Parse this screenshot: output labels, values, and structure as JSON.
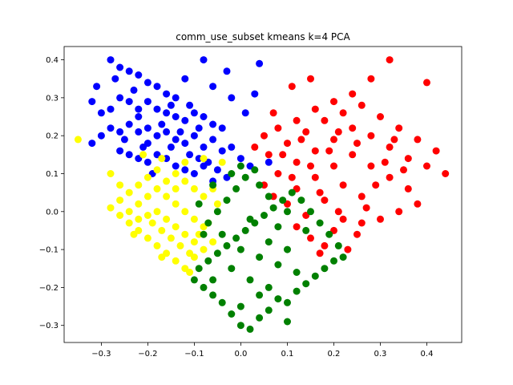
{
  "chart_data": {
    "type": "scatter",
    "title": "comm_use_subset kmeans k=4 PCA",
    "xlabel": "",
    "ylabel": "",
    "xlim": [
      -0.38,
      0.475
    ],
    "ylim": [
      -0.345,
      0.435
    ],
    "xticks": [
      -0.3,
      -0.2,
      -0.1,
      0.0,
      0.1,
      0.2,
      0.3,
      0.4
    ],
    "xtick_labels": [
      "−0.3",
      "−0.2",
      "−0.1",
      "0.0",
      "0.1",
      "0.2",
      "0.3",
      "0.4"
    ],
    "yticks": [
      -0.3,
      -0.2,
      -0.1,
      0.0,
      0.1,
      0.2,
      0.3,
      0.4
    ],
    "ytick_labels": [
      "−0.3",
      "−0.2",
      "−0.1",
      "0.0",
      "0.1",
      "0.2",
      "0.3",
      "0.4"
    ],
    "grid": false,
    "legend": "none",
    "series": [
      {
        "color": "#0000ff",
        "points": [
          [
            -0.28,
            0.4
          ],
          [
            -0.26,
            0.38
          ],
          [
            -0.24,
            0.37
          ],
          [
            -0.22,
            0.36
          ],
          [
            -0.2,
            0.34
          ],
          [
            -0.18,
            0.33
          ],
          [
            -0.16,
            0.31
          ],
          [
            -0.14,
            0.3
          ],
          [
            -0.12,
            0.35
          ],
          [
            -0.08,
            0.4
          ],
          [
            -0.06,
            0.33
          ],
          [
            -0.03,
            0.37
          ],
          [
            0.04,
            0.39
          ],
          [
            -0.31,
            0.33
          ],
          [
            -0.32,
            0.29
          ],
          [
            -0.3,
            0.26
          ],
          [
            -0.28,
            0.27
          ],
          [
            -0.26,
            0.3
          ],
          [
            -0.24,
            0.29
          ],
          [
            -0.22,
            0.27
          ],
          [
            -0.2,
            0.29
          ],
          [
            -0.18,
            0.27
          ],
          [
            -0.16,
            0.26
          ],
          [
            -0.14,
            0.25
          ],
          [
            -0.12,
            0.24
          ],
          [
            -0.1,
            0.26
          ],
          [
            -0.08,
            0.25
          ],
          [
            -0.06,
            0.23
          ],
          [
            -0.04,
            0.22
          ],
          [
            -0.02,
            0.3
          ],
          [
            0.01,
            0.26
          ],
          [
            -0.28,
            0.22
          ],
          [
            -0.3,
            0.2
          ],
          [
            -0.32,
            0.18
          ],
          [
            -0.26,
            0.21
          ],
          [
            -0.24,
            0.23
          ],
          [
            -0.22,
            0.21
          ],
          [
            -0.2,
            0.22
          ],
          [
            -0.18,
            0.2
          ],
          [
            -0.16,
            0.21
          ],
          [
            -0.14,
            0.19
          ],
          [
            -0.12,
            0.18
          ],
          [
            -0.1,
            0.2
          ],
          [
            -0.08,
            0.17
          ],
          [
            -0.06,
            0.19
          ],
          [
            -0.04,
            0.16
          ],
          [
            -0.02,
            0.17
          ],
          [
            0.0,
            0.14
          ],
          [
            0.02,
            0.12
          ],
          [
            -0.26,
            0.16
          ],
          [
            -0.24,
            0.15
          ],
          [
            -0.22,
            0.14
          ],
          [
            -0.2,
            0.13
          ],
          [
            -0.18,
            0.15
          ],
          [
            -0.16,
            0.14
          ],
          [
            -0.14,
            0.12
          ],
          [
            -0.12,
            0.11
          ],
          [
            -0.1,
            0.1
          ],
          [
            -0.08,
            0.12
          ],
          [
            -0.06,
            0.08
          ],
          [
            -0.05,
            0.11
          ],
          [
            -0.03,
            0.09
          ],
          [
            -0.2,
            0.18
          ],
          [
            -0.22,
            0.25
          ],
          [
            -0.25,
            0.19
          ],
          [
            -0.17,
            0.23
          ],
          [
            -0.15,
            0.17
          ],
          [
            -0.13,
            0.21
          ],
          [
            -0.11,
            0.15
          ],
          [
            -0.09,
            0.14
          ],
          [
            -0.07,
            0.13
          ],
          [
            -0.19,
            0.1
          ],
          [
            -0.21,
            0.17
          ],
          [
            -0.23,
            0.32
          ],
          [
            -0.27,
            0.35
          ],
          [
            -0.15,
            0.28
          ],
          [
            -0.11,
            0.28
          ],
          [
            -0.09,
            0.22
          ],
          [
            0.03,
            0.31
          ],
          [
            0.06,
            0.13
          ]
        ]
      },
      {
        "color": "#ff0000",
        "points": [
          [
            0.32,
            0.4
          ],
          [
            0.28,
            0.35
          ],
          [
            0.4,
            0.34
          ],
          [
            0.24,
            0.31
          ],
          [
            0.2,
            0.29
          ],
          [
            0.16,
            0.27
          ],
          [
            0.12,
            0.24
          ],
          [
            0.08,
            0.22
          ],
          [
            0.05,
            0.2
          ],
          [
            0.03,
            0.17
          ],
          [
            0.06,
            0.15
          ],
          [
            0.1,
            0.18
          ],
          [
            0.14,
            0.21
          ],
          [
            0.18,
            0.24
          ],
          [
            0.22,
            0.26
          ],
          [
            0.26,
            0.28
          ],
          [
            0.3,
            0.25
          ],
          [
            0.34,
            0.22
          ],
          [
            0.38,
            0.19
          ],
          [
            0.42,
            0.16
          ],
          [
            0.44,
            0.1
          ],
          [
            0.4,
            0.12
          ],
          [
            0.36,
            0.14
          ],
          [
            0.32,
            0.17
          ],
          [
            0.28,
            0.2
          ],
          [
            0.24,
            0.22
          ],
          [
            0.2,
            0.19
          ],
          [
            0.16,
            0.16
          ],
          [
            0.12,
            0.13
          ],
          [
            0.08,
            0.1
          ],
          [
            0.05,
            0.07
          ],
          [
            0.07,
            0.04
          ],
          [
            0.1,
            0.02
          ],
          [
            0.12,
            0.06
          ],
          [
            0.16,
            0.09
          ],
          [
            0.2,
            0.12
          ],
          [
            0.24,
            0.15
          ],
          [
            0.28,
            0.12
          ],
          [
            0.32,
            0.09
          ],
          [
            0.36,
            0.06
          ],
          [
            0.38,
            0.02
          ],
          [
            0.34,
            0.0
          ],
          [
            0.3,
            -0.02
          ],
          [
            0.26,
            0.04
          ],
          [
            0.22,
            0.07
          ],
          [
            0.18,
            0.03
          ],
          [
            0.14,
            -0.01
          ],
          [
            0.12,
            -0.04
          ],
          [
            0.15,
            -0.07
          ],
          [
            0.18,
            -0.09
          ],
          [
            0.2,
            -0.05
          ],
          [
            0.22,
            -0.02
          ],
          [
            0.25,
            -0.06
          ],
          [
            0.17,
            -0.11
          ],
          [
            0.23,
            -0.1
          ],
          [
            0.27,
            0.01
          ],
          [
            0.29,
            0.07
          ],
          [
            0.31,
            0.13
          ],
          [
            0.33,
            0.19
          ],
          [
            0.35,
            0.11
          ],
          [
            0.19,
            0.16
          ],
          [
            0.21,
            0.21
          ],
          [
            0.25,
            0.18
          ],
          [
            0.15,
            0.12
          ],
          [
            0.11,
            0.09
          ],
          [
            0.09,
            0.15
          ],
          [
            0.13,
            0.19
          ],
          [
            0.17,
            0.05
          ],
          [
            0.21,
            0.0
          ],
          [
            0.26,
            -0.03
          ],
          [
            0.11,
            0.33
          ],
          [
            0.15,
            0.35
          ],
          [
            0.07,
            0.26
          ]
        ]
      },
      {
        "color": "#ffff00",
        "points": [
          [
            -0.35,
            0.19
          ],
          [
            -0.21,
            0.15
          ],
          [
            -0.17,
            0.14
          ],
          [
            -0.04,
            0.13
          ],
          [
            -0.08,
            0.14
          ],
          [
            -0.12,
            0.13
          ],
          [
            -0.14,
            0.1
          ],
          [
            -0.16,
            0.08
          ],
          [
            -0.18,
            0.11
          ],
          [
            -0.2,
            0.09
          ],
          [
            -0.22,
            0.07
          ],
          [
            -0.24,
            0.05
          ],
          [
            -0.26,
            0.03
          ],
          [
            -0.28,
            0.01
          ],
          [
            -0.26,
            -0.01
          ],
          [
            -0.24,
            -0.03
          ],
          [
            -0.22,
            -0.05
          ],
          [
            -0.2,
            -0.07
          ],
          [
            -0.18,
            -0.09
          ],
          [
            -0.16,
            -0.11
          ],
          [
            -0.14,
            -0.13
          ],
          [
            -0.12,
            -0.15
          ],
          [
            -0.1,
            -0.12
          ],
          [
            -0.08,
            -0.1
          ],
          [
            -0.06,
            -0.08
          ],
          [
            -0.08,
            -0.04
          ],
          [
            -0.1,
            -0.02
          ],
          [
            -0.12,
            0.0
          ],
          [
            -0.14,
            0.02
          ],
          [
            -0.16,
            0.04
          ],
          [
            -0.18,
            0.06
          ],
          [
            -0.2,
            0.04
          ],
          [
            -0.22,
            0.02
          ],
          [
            -0.24,
            0.0
          ],
          [
            -0.22,
            -0.02
          ],
          [
            -0.2,
            -0.01
          ],
          [
            -0.18,
            0.0
          ],
          [
            -0.16,
            -0.02
          ],
          [
            -0.14,
            -0.04
          ],
          [
            -0.12,
            -0.06
          ],
          [
            -0.1,
            -0.08
          ],
          [
            -0.15,
            -0.07
          ],
          [
            -0.17,
            -0.05
          ],
          [
            -0.19,
            -0.03
          ],
          [
            -0.13,
            -0.09
          ],
          [
            -0.11,
            -0.11
          ],
          [
            -0.09,
            -0.06
          ],
          [
            -0.07,
            -0.03
          ],
          [
            -0.05,
            0.02
          ],
          [
            -0.06,
            0.06
          ],
          [
            -0.08,
            0.04
          ],
          [
            -0.1,
            0.06
          ],
          [
            -0.12,
            0.08
          ],
          [
            -0.14,
            0.06
          ],
          [
            -0.28,
            0.1
          ],
          [
            -0.26,
            0.07
          ],
          [
            -0.17,
            -0.12
          ],
          [
            -0.11,
            -0.16
          ],
          [
            -0.23,
            -0.06
          ]
        ]
      },
      {
        "color": "#008000",
        "points": [
          [
            0.0,
            -0.3
          ],
          [
            0.02,
            -0.31
          ],
          [
            0.04,
            -0.28
          ],
          [
            -0.02,
            -0.27
          ],
          [
            0.06,
            -0.26
          ],
          [
            -0.04,
            -0.24
          ],
          [
            0.08,
            -0.23
          ],
          [
            0.1,
            -0.29
          ],
          [
            -0.06,
            -0.22
          ],
          [
            0.12,
            -0.21
          ],
          [
            -0.08,
            -0.2
          ],
          [
            0.14,
            -0.19
          ],
          [
            0.16,
            -0.17
          ],
          [
            -0.1,
            -0.18
          ],
          [
            -0.09,
            -0.15
          ],
          [
            0.18,
            -0.15
          ],
          [
            0.2,
            -0.13
          ],
          [
            0.22,
            -0.12
          ],
          [
            -0.07,
            -0.13
          ],
          [
            -0.05,
            -0.11
          ],
          [
            -0.03,
            -0.09
          ],
          [
            -0.01,
            -0.07
          ],
          [
            0.01,
            -0.05
          ],
          [
            0.03,
            -0.03
          ],
          [
            0.05,
            -0.01
          ],
          [
            0.07,
            0.01
          ],
          [
            0.09,
            0.03
          ],
          [
            0.11,
            0.05
          ],
          [
            0.13,
            0.03
          ],
          [
            0.15,
            0.0
          ],
          [
            0.17,
            -0.03
          ],
          [
            0.19,
            -0.06
          ],
          [
            0.21,
            -0.09
          ],
          [
            -0.07,
            -0.03
          ],
          [
            -0.05,
            0.0
          ],
          [
            -0.03,
            0.03
          ],
          [
            -0.01,
            0.06
          ],
          [
            0.01,
            0.09
          ],
          [
            0.03,
            0.11
          ],
          [
            0.0,
            0.12
          ],
          [
            -0.02,
            0.1
          ],
          [
            -0.06,
            0.07
          ],
          [
            -0.09,
            0.02
          ],
          [
            -0.08,
            -0.06
          ],
          [
            -0.04,
            -0.06
          ],
          [
            0.0,
            -0.1
          ],
          [
            0.04,
            -0.12
          ],
          [
            0.08,
            -0.14
          ],
          [
            0.12,
            -0.16
          ],
          [
            0.1,
            -0.1
          ],
          [
            0.06,
            -0.08
          ],
          [
            0.02,
            -0.02
          ],
          [
            0.06,
            0.04
          ],
          [
            0.1,
            0.0
          ],
          [
            0.14,
            -0.05
          ],
          [
            0.08,
            -0.04
          ],
          [
            0.04,
            0.07
          ],
          [
            -0.02,
            -0.15
          ],
          [
            0.02,
            -0.18
          ],
          [
            0.06,
            -0.2
          ],
          [
            -0.06,
            -0.18
          ],
          [
            0.1,
            -0.24
          ],
          [
            0.04,
            -0.22
          ],
          [
            0.0,
            -0.25
          ]
        ]
      }
    ]
  }
}
